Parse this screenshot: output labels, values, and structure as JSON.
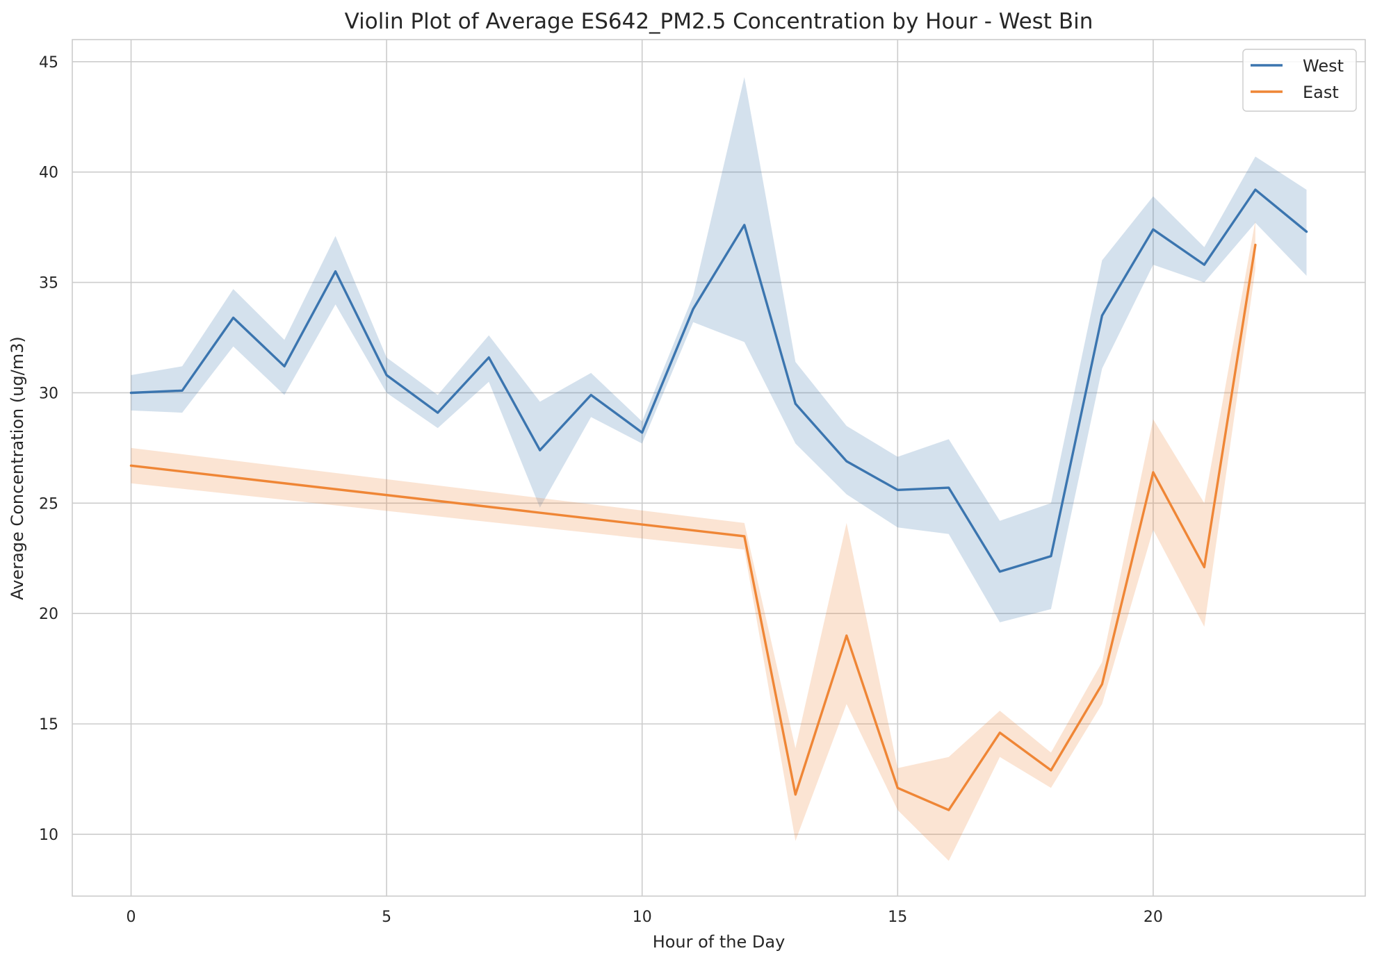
{
  "chart_data": {
    "type": "line",
    "title": "Violin Plot of Average ES642_PM2.5 Concentration by Hour - West Bin",
    "xlabel": "Hour of the Day",
    "ylabel": "Average Concentration (ug/m3)",
    "xlim": [
      -1.15,
      24.15
    ],
    "ylim": [
      7.2,
      46
    ],
    "xticks": [
      0,
      5,
      10,
      15,
      20
    ],
    "yticks": [
      10,
      15,
      20,
      25,
      30,
      35,
      40,
      45
    ],
    "grid": true,
    "legend_position": "top-right",
    "series": [
      {
        "name": "West",
        "color": "#3b75af",
        "band_color": "#3b75af",
        "x": [
          0,
          1,
          2,
          3,
          4,
          5,
          6,
          7,
          8,
          9,
          10,
          11,
          12,
          13,
          14,
          15,
          16,
          17,
          18,
          19,
          20,
          21,
          22,
          23
        ],
        "values": [
          30.0,
          30.1,
          33.4,
          31.2,
          35.5,
          30.8,
          29.1,
          31.6,
          27.4,
          29.9,
          28.2,
          33.8,
          37.6,
          29.5,
          26.9,
          25.6,
          25.7,
          21.9,
          22.6,
          33.5,
          37.4,
          35.8,
          39.2,
          37.3
        ],
        "lower": [
          29.2,
          29.1,
          32.1,
          29.9,
          34.0,
          30.0,
          28.4,
          30.5,
          24.8,
          28.9,
          27.7,
          33.2,
          32.3,
          27.7,
          25.4,
          23.9,
          23.6,
          19.6,
          20.2,
          31.1,
          35.8,
          35.0,
          37.7,
          35.3
        ],
        "upper": [
          30.8,
          31.2,
          34.7,
          32.4,
          37.1,
          31.6,
          29.9,
          32.6,
          29.6,
          30.9,
          28.7,
          34.4,
          44.3,
          31.4,
          28.5,
          27.1,
          27.9,
          24.2,
          25.0,
          36.0,
          38.9,
          36.6,
          40.7,
          39.2
        ]
      },
      {
        "name": "East",
        "color": "#ef8636",
        "band_color": "#ef8636",
        "x": [
          0,
          12,
          13,
          14,
          15,
          16,
          17,
          18,
          19,
          20,
          21,
          22
        ],
        "values": [
          26.7,
          23.5,
          11.8,
          19.0,
          12.1,
          11.1,
          14.6,
          12.9,
          16.8,
          26.4,
          22.1,
          36.7
        ],
        "lower": [
          25.9,
          22.9,
          9.7,
          15.9,
          11.1,
          8.8,
          13.5,
          12.1,
          15.9,
          23.8,
          19.4,
          35.6
        ],
        "upper": [
          27.5,
          24.1,
          13.9,
          24.1,
          13.0,
          13.5,
          15.6,
          13.7,
          17.8,
          28.8,
          25.0,
          37.8
        ]
      }
    ]
  }
}
